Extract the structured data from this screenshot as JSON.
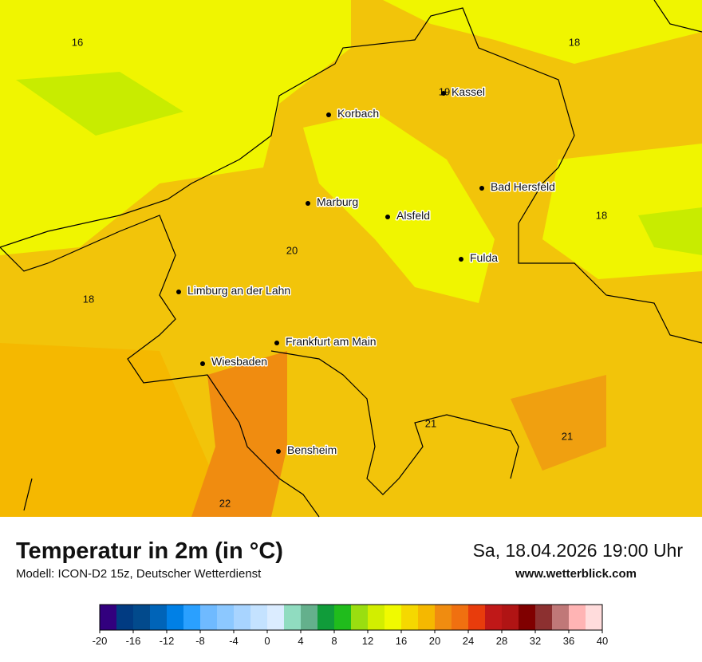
{
  "header": {
    "title": "Temperatur in 2m (in °C)",
    "subtitle": "Modell: ICON-D2 15z, Deutscher Wetterdienst",
    "date": "Sa, 18.04.2026 19:00 Uhr",
    "website": "www.wetterblick.com"
  },
  "cities": [
    "Kassel",
    "Korbach",
    "Bad Hersfeld",
    "Marburg",
    "Alsfeld",
    "Fulda",
    "Limburg an der Lahn",
    "Frankfurt am Main",
    "Wiesbaden",
    "Bensheim"
  ],
  "temperature_labels": [
    16,
    18,
    19,
    18,
    20,
    18,
    21,
    21,
    22
  ],
  "colorbar": {
    "range": [
      -20,
      40
    ],
    "ticks": [
      -20,
      -16,
      -12,
      -8,
      -4,
      0,
      4,
      8,
      12,
      16,
      20,
      24,
      28,
      32,
      36,
      40
    ],
    "colors": [
      "#32007e",
      "#013b82",
      "#024a8c",
      "#0064b8",
      "#0080e6",
      "#2aa0ff",
      "#6fbaff",
      "#8cc8ff",
      "#a8d4ff",
      "#c4e2ff",
      "#dbecff",
      "#90dcc0",
      "#64b08c",
      "#109c3a",
      "#20bc1c",
      "#9ade10",
      "#d2ee00",
      "#f0fa00",
      "#f5d800",
      "#f5b800",
      "#f08c10",
      "#f07010",
      "#e83c0c",
      "#c01818",
      "#b01414",
      "#800000",
      "#8c3030",
      "#c07878",
      "#ffb4b4",
      "#ffdcdc"
    ]
  }
}
